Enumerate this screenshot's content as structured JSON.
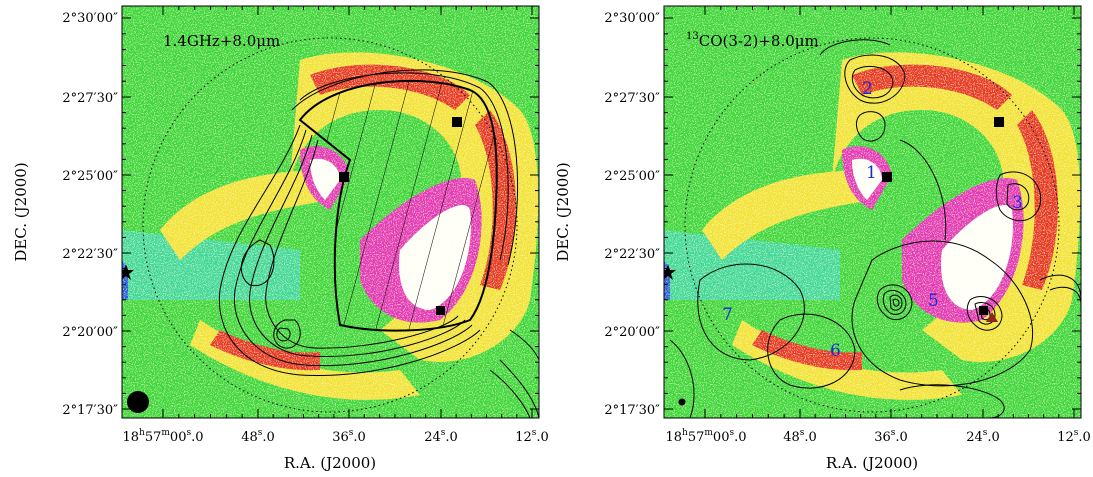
{
  "figure": {
    "left_panel": {
      "title": "1.4GHz+8.0μm",
      "sup": ""
    },
    "right_panel": {
      "title": "CO(3-2)+8.0μm",
      "sup": "13"
    },
    "ylabel": "DEC. (J2000)",
    "xlabel": "R.A. (J2000)",
    "dec_ticks": [
      "2°30′00″",
      "2°27′30″",
      "2°25′00″",
      "2°22′30″",
      "2°20′00″",
      "2°17′30″"
    ],
    "ra_ticks": [
      "18h57m00s.0",
      "48s.0",
      "36s.0",
      "24s.0",
      "12s.0"
    ],
    "ra_tick_parts": [
      {
        "a": "18",
        "b": "h",
        "c": "57",
        "d": "m",
        "e": "00",
        "f": "s",
        "g": ".0"
      },
      {
        "a": "48",
        "f": "s",
        "g": ".0"
      },
      {
        "a": "36",
        "f": "s",
        "g": ".0"
      },
      {
        "a": "24",
        "f": "s",
        "g": ".0"
      },
      {
        "a": "12",
        "f": "s",
        "g": ".0"
      }
    ],
    "clumps": [
      "1",
      "2",
      "3",
      "5",
      "6",
      "7"
    ],
    "colors": {
      "background_map": "#3fd63f",
      "cyan_region": "#44d8b4",
      "yellow": "#f2e23a",
      "red": "#e63a28",
      "magenta": "#e23ab8",
      "white_core": "#ffffff",
      "label_blue": "#1a2bd6",
      "contour": "#000000"
    },
    "markers": [
      "filled-square",
      "star",
      "triangle",
      "beam-circle"
    ]
  }
}
